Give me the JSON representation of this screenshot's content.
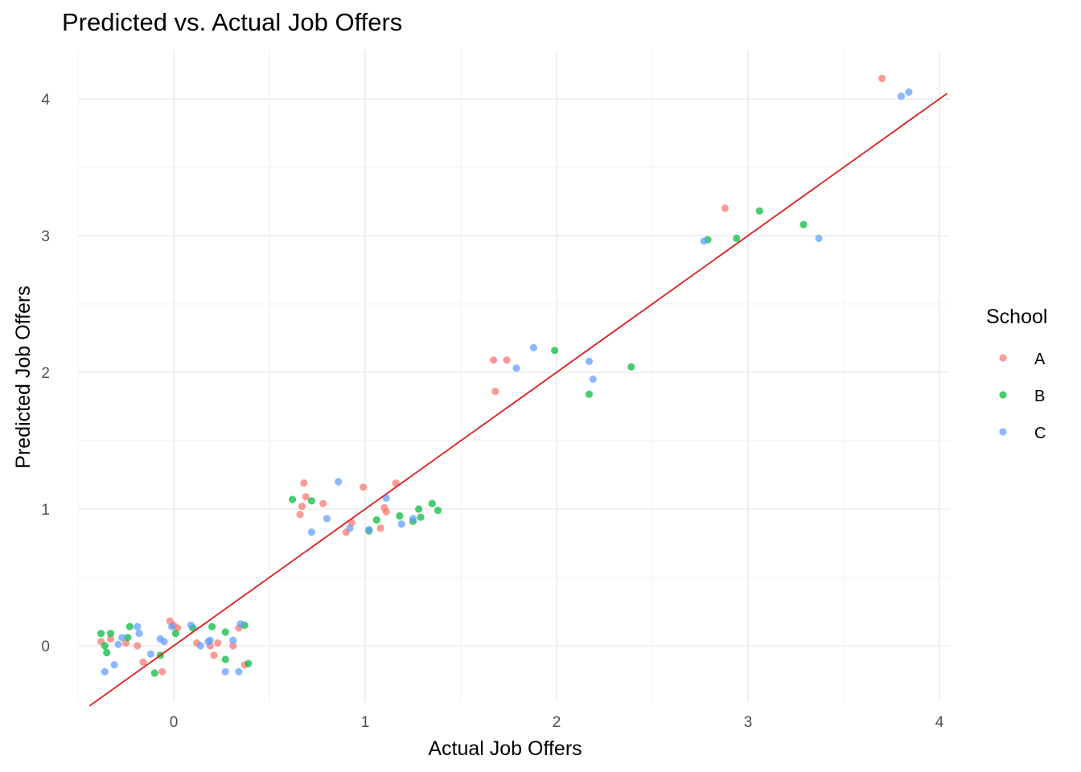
{
  "chart_data": {
    "type": "scatter",
    "title": "Predicted vs. Actual Job Offers",
    "xlabel": "Actual Job Offers",
    "ylabel": "Predicted Job Offers",
    "xlim": [
      -0.5,
      4.05
    ],
    "ylim": [
      -0.42,
      4.37
    ],
    "x_ticks": [
      "0",
      "1",
      "2",
      "3",
      "4"
    ],
    "y_ticks": [
      "0",
      "1",
      "2",
      "3",
      "4"
    ],
    "grid": true,
    "legend": {
      "title": "School",
      "position": "right"
    },
    "reference_line": {
      "type": "identity",
      "slope": 1,
      "intercept": 0,
      "color": "#e31a1c"
    },
    "series": [
      {
        "name": "A",
        "color": "#f8766d",
        "points": [
          [
            -0.38,
            0.03
          ],
          [
            -0.33,
            0.05
          ],
          [
            -0.25,
            0.02
          ],
          [
            -0.19,
            0.0
          ],
          [
            -0.16,
            -0.12
          ],
          [
            -0.06,
            -0.19
          ],
          [
            -0.02,
            0.18
          ],
          [
            0.0,
            0.15
          ],
          [
            0.02,
            0.13
          ],
          [
            0.12,
            0.02
          ],
          [
            0.19,
            0.0
          ],
          [
            0.21,
            -0.07
          ],
          [
            0.23,
            0.02
          ],
          [
            0.31,
            0.0
          ],
          [
            0.34,
            0.13
          ],
          [
            0.37,
            -0.14
          ],
          [
            0.66,
            0.96
          ],
          [
            0.67,
            1.02
          ],
          [
            0.68,
            1.19
          ],
          [
            0.69,
            1.09
          ],
          [
            0.78,
            1.04
          ],
          [
            0.9,
            0.83
          ],
          [
            0.93,
            0.9
          ],
          [
            0.99,
            1.16
          ],
          [
            1.08,
            0.86
          ],
          [
            1.1,
            1.01
          ],
          [
            1.11,
            0.98
          ],
          [
            1.16,
            1.19
          ],
          [
            1.67,
            2.09
          ],
          [
            1.68,
            1.86
          ],
          [
            1.74,
            2.09
          ],
          [
            2.88,
            3.2
          ],
          [
            3.7,
            4.15
          ]
        ]
      },
      {
        "name": "B",
        "color": "#00ba38",
        "points": [
          [
            -0.38,
            0.09
          ],
          [
            -0.36,
            0.0
          ],
          [
            -0.35,
            -0.05
          ],
          [
            -0.33,
            0.09
          ],
          [
            -0.24,
            0.06
          ],
          [
            -0.23,
            0.14
          ],
          [
            -0.1,
            -0.2
          ],
          [
            -0.07,
            -0.07
          ],
          [
            0.01,
            0.09
          ],
          [
            0.1,
            0.13
          ],
          [
            0.2,
            0.14
          ],
          [
            0.27,
            -0.1
          ],
          [
            0.27,
            0.1
          ],
          [
            0.37,
            0.15
          ],
          [
            0.39,
            -0.13
          ],
          [
            0.62,
            1.07
          ],
          [
            0.72,
            1.06
          ],
          [
            1.02,
            0.84
          ],
          [
            1.06,
            0.92
          ],
          [
            1.18,
            0.95
          ],
          [
            1.25,
            0.91
          ],
          [
            1.28,
            1.0
          ],
          [
            1.29,
            0.94
          ],
          [
            1.35,
            1.04
          ],
          [
            1.38,
            0.99
          ],
          [
            1.99,
            2.16
          ],
          [
            2.17,
            1.84
          ],
          [
            2.39,
            2.04
          ],
          [
            2.79,
            2.97
          ],
          [
            2.94,
            2.98
          ],
          [
            3.06,
            3.18
          ],
          [
            3.29,
            3.08
          ]
        ]
      },
      {
        "name": "C",
        "color": "#619cff",
        "points": [
          [
            -0.36,
            -0.19
          ],
          [
            -0.31,
            -0.14
          ],
          [
            -0.29,
            0.01
          ],
          [
            -0.27,
            0.06
          ],
          [
            -0.19,
            0.14
          ],
          [
            -0.18,
            0.09
          ],
          [
            -0.12,
            -0.06
          ],
          [
            -0.07,
            0.05
          ],
          [
            -0.05,
            0.03
          ],
          [
            -0.01,
            0.14
          ],
          [
            0.09,
            0.15
          ],
          [
            0.14,
            0.0
          ],
          [
            0.18,
            0.03
          ],
          [
            0.19,
            0.04
          ],
          [
            0.27,
            -0.19
          ],
          [
            0.31,
            0.04
          ],
          [
            0.34,
            -0.19
          ],
          [
            0.35,
            0.16
          ],
          [
            0.72,
            0.83
          ],
          [
            0.8,
            0.93
          ],
          [
            0.86,
            1.2
          ],
          [
            0.92,
            0.86
          ],
          [
            1.02,
            0.85
          ],
          [
            1.11,
            1.08
          ],
          [
            1.19,
            0.89
          ],
          [
            1.25,
            0.93
          ],
          [
            1.79,
            2.03
          ],
          [
            1.88,
            2.18
          ],
          [
            2.17,
            2.08
          ],
          [
            2.19,
            1.95
          ],
          [
            2.77,
            2.96
          ],
          [
            3.37,
            2.98
          ],
          [
            3.8,
            4.02
          ],
          [
            3.84,
            4.05
          ]
        ]
      }
    ]
  }
}
